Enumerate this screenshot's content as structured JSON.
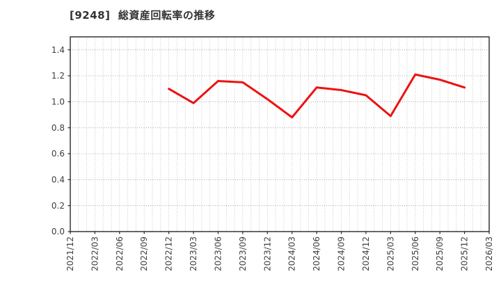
{
  "page": {
    "background": "#ffffff"
  },
  "chart_data": {
    "type": "line",
    "title": "[9248]  総資産回転率の推移",
    "title_color": "#333333",
    "xlabel": "",
    "ylabel": "",
    "x_tick_labels": [
      "2021/12",
      "2022/03",
      "2022/06",
      "2022/09",
      "2022/12",
      "2023/03",
      "2023/06",
      "2023/09",
      "2023/12",
      "2024/03",
      "2024/06",
      "2024/09",
      "2024/12",
      "2025/03",
      "2025/06",
      "2025/09",
      "2025/12",
      "2026/03"
    ],
    "y_tick_labels": [
      "0.0",
      "0.2",
      "0.4",
      "0.6",
      "0.8",
      "1.0",
      "1.2",
      "1.4"
    ],
    "ylim": [
      0,
      1.5
    ],
    "legend_position": "none",
    "grid": {
      "horizontal_style": "dotted",
      "horizontal_color": "#909090",
      "vertical_style": "dotted-monthly-minor",
      "vertical_color": "#b3b3b3"
    },
    "frame_color": "#262626",
    "series": [
      {
        "name": "総資産回転率",
        "color": "#ee1111",
        "line_width": 3,
        "points": [
          {
            "x": "2022/12",
            "y": 1.1
          },
          {
            "x": "2023/03",
            "y": 0.99
          },
          {
            "x": "2023/06",
            "y": 1.16
          },
          {
            "x": "2023/09",
            "y": 1.15
          },
          {
            "x": "2023/12",
            "y": 1.02
          },
          {
            "x": "2024/03",
            "y": 0.88
          },
          {
            "x": "2024/06",
            "y": 1.11
          },
          {
            "x": "2024/09",
            "y": 1.09
          },
          {
            "x": "2024/12",
            "y": 1.05
          },
          {
            "x": "2025/03",
            "y": 0.89
          },
          {
            "x": "2025/06",
            "y": 1.21
          },
          {
            "x": "2025/09",
            "y": 1.17
          },
          {
            "x": "2025/12",
            "y": 1.11
          }
        ]
      }
    ]
  }
}
